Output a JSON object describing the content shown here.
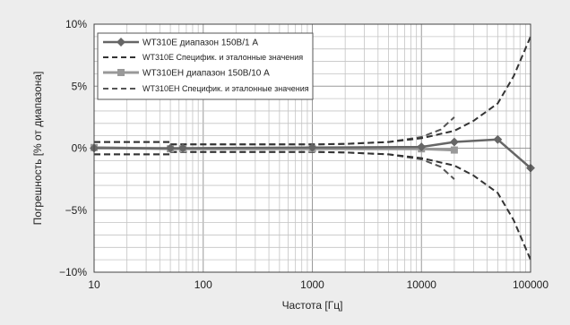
{
  "chart_data": {
    "type": "line",
    "xlabel": "Частота [Гц]",
    "ylabel": "Погрешность [% от диапазона]",
    "xscale": "log",
    "xlim": [
      10,
      100000
    ],
    "ylim": [
      -10,
      10
    ],
    "x_ticks": [
      10,
      100,
      1000,
      10000,
      100000
    ],
    "x_tick_labels": [
      "10",
      "100",
      "1000",
      "10000",
      "100000"
    ],
    "y_ticks": [
      10,
      5,
      0,
      -5,
      -10
    ],
    "y_tick_labels": [
      "10%",
      "5%",
      "0%",
      "−5%",
      "−10%"
    ],
    "grid": true,
    "legend_position": "top-left",
    "series": [
      {
        "name": "WT310E диапазон 150В/1 А",
        "color": "#666666",
        "style": "solid",
        "marker": "diamond",
        "x": [
          10,
          50,
          65,
          1000,
          10000,
          20000,
          50000,
          100000
        ],
        "y": [
          0.0,
          0.0,
          0.0,
          0.05,
          0.1,
          0.5,
          0.7,
          -1.6
        ]
      },
      {
        "name": "WT310E Специфик. и эталонные значения",
        "color": "#333333",
        "style": "dashed",
        "marker": "none",
        "x": [
          10,
          50,
          50,
          65,
          65,
          1000,
          2000,
          5000,
          10000,
          20000,
          30000,
          50000,
          70000,
          100000
        ],
        "y_upper": [
          0.5,
          0.5,
          0.3,
          0.3,
          0.3,
          0.3,
          0.35,
          0.5,
          0.8,
          1.4,
          2.2,
          3.6,
          5.8,
          9.0
        ],
        "y_lower": [
          -0.5,
          -0.5,
          -0.3,
          -0.3,
          -0.3,
          -0.3,
          -0.35,
          -0.5,
          -0.8,
          -1.4,
          -2.2,
          -3.6,
          -5.8,
          -9.0
        ]
      },
      {
        "name": "WT310EH диапазон 150В/10 А",
        "color": "#999999",
        "style": "solid",
        "marker": "square",
        "x": [
          10,
          50,
          65,
          1000,
          10000,
          20000
        ],
        "y": [
          0.05,
          -0.05,
          -0.05,
          -0.05,
          -0.05,
          -0.15
        ]
      },
      {
        "name": "WT310EH Специфик. и эталонные значения",
        "color": "#555555",
        "style": "dashed",
        "marker": "none",
        "x": [
          10,
          50,
          50,
          65,
          65,
          1000,
          2000,
          5000,
          10000,
          15000,
          20000
        ],
        "y_upper": [
          0.5,
          0.5,
          0.3,
          0.3,
          0.3,
          0.3,
          0.35,
          0.5,
          0.9,
          1.5,
          2.5
        ],
        "y_lower": [
          -0.5,
          -0.5,
          -0.3,
          -0.3,
          -0.3,
          -0.3,
          -0.35,
          -0.5,
          -0.9,
          -1.5,
          -2.5
        ]
      }
    ]
  }
}
